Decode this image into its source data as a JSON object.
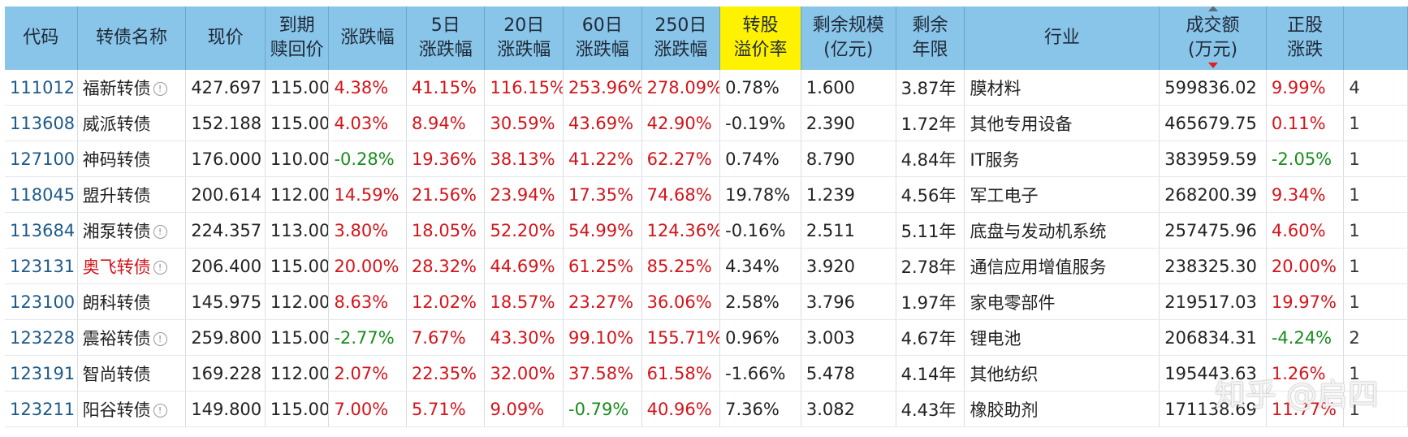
{
  "headers": {
    "code": "代码",
    "name": "转债名称",
    "price": "现价",
    "redeem_l1": "到期",
    "redeem_l2": "赎回价",
    "change": "涨跌幅",
    "d5_l1": "5日",
    "d5_l2": "涨跌幅",
    "d20_l1": "20日",
    "d20_l2": "涨跌幅",
    "d60_l1": "60日",
    "d60_l2": "涨跌幅",
    "d250_l1": "250日",
    "d250_l2": "涨跌幅",
    "premium_l1": "转股",
    "premium_l2": "溢价率",
    "scale_l1": "剩余规模",
    "scale_l2": "(亿元)",
    "years_l1": "剩余",
    "years_l2": "年限",
    "industry": "行业",
    "volume_l1": "成交额",
    "volume_l2": "(万元)",
    "stock_l1": "正股",
    "stock_l2": "涨跌"
  },
  "rows": [
    {
      "code": "111012",
      "name": "福新转债",
      "info": true,
      "name_red": false,
      "price": "427.697",
      "redeem": "115.00",
      "change": "4.38%",
      "change_c": "red",
      "d5": "41.15%",
      "d5_c": "red",
      "d20": "116.15%",
      "d20_c": "red",
      "d60": "253.96%",
      "d60_c": "red",
      "d250": "278.09%",
      "d250_c": "red",
      "premium": "0.78%",
      "scale": "1.600",
      "years": "3.87年",
      "industry": "膜材料",
      "volume": "599836.02",
      "stock": "9.99%",
      "stock_c": "red",
      "tail": "4"
    },
    {
      "code": "113608",
      "name": "威派转债",
      "info": false,
      "name_red": false,
      "price": "152.188",
      "redeem": "115.00",
      "change": "4.03%",
      "change_c": "red",
      "d5": "8.94%",
      "d5_c": "red",
      "d20": "30.59%",
      "d20_c": "red",
      "d60": "43.69%",
      "d60_c": "red",
      "d250": "42.90%",
      "d250_c": "red",
      "premium": "-0.19%",
      "scale": "2.390",
      "years": "1.72年",
      "industry": "其他专用设备",
      "volume": "465679.75",
      "stock": "0.11%",
      "stock_c": "red",
      "tail": "1"
    },
    {
      "code": "127100",
      "name": "神码转债",
      "info": false,
      "name_red": false,
      "price": "176.000",
      "redeem": "110.00",
      "change": "-0.28%",
      "change_c": "green",
      "d5": "19.36%",
      "d5_c": "red",
      "d20": "38.13%",
      "d20_c": "red",
      "d60": "41.22%",
      "d60_c": "red",
      "d250": "62.27%",
      "d250_c": "red",
      "premium": "0.74%",
      "scale": "8.790",
      "years": "4.84年",
      "industry": "IT服务",
      "volume": "383959.59",
      "stock": "-2.05%",
      "stock_c": "green",
      "tail": "1"
    },
    {
      "code": "118045",
      "name": "盟升转债",
      "info": false,
      "name_red": false,
      "price": "200.614",
      "redeem": "112.00",
      "change": "14.59%",
      "change_c": "red",
      "d5": "21.56%",
      "d5_c": "red",
      "d20": "23.94%",
      "d20_c": "red",
      "d60": "17.35%",
      "d60_c": "red",
      "d250": "74.68%",
      "d250_c": "red",
      "premium": "19.78%",
      "scale": "1.239",
      "years": "4.56年",
      "industry": "军工电子",
      "volume": "268200.39",
      "stock": "9.34%",
      "stock_c": "red",
      "tail": "1"
    },
    {
      "code": "113684",
      "name": "湘泵转债",
      "info": true,
      "name_red": false,
      "price": "224.357",
      "redeem": "113.00",
      "change": "3.80%",
      "change_c": "red",
      "d5": "18.05%",
      "d5_c": "red",
      "d20": "52.20%",
      "d20_c": "red",
      "d60": "54.99%",
      "d60_c": "red",
      "d250": "124.36%",
      "d250_c": "red",
      "premium": "-0.16%",
      "scale": "2.511",
      "years": "5.11年",
      "industry": "底盘与发动机系统",
      "volume": "257475.96",
      "stock": "4.60%",
      "stock_c": "red",
      "tail": "1"
    },
    {
      "code": "123131",
      "name": "奥飞转债",
      "info": true,
      "name_red": true,
      "price": "206.400",
      "redeem": "115.00",
      "change": "20.00%",
      "change_c": "red",
      "d5": "28.32%",
      "d5_c": "red",
      "d20": "44.69%",
      "d20_c": "red",
      "d60": "61.25%",
      "d60_c": "red",
      "d250": "85.25%",
      "d250_c": "red",
      "premium": "4.34%",
      "scale": "3.920",
      "years": "2.78年",
      "industry": "通信应用增值服务",
      "volume": "238325.30",
      "stock": "20.00%",
      "stock_c": "red",
      "tail": "1"
    },
    {
      "code": "123100",
      "name": "朗科转债",
      "info": false,
      "name_red": false,
      "price": "145.975",
      "redeem": "112.00",
      "change": "8.63%",
      "change_c": "red",
      "d5": "12.02%",
      "d5_c": "red",
      "d20": "18.57%",
      "d20_c": "red",
      "d60": "23.27%",
      "d60_c": "red",
      "d250": "36.06%",
      "d250_c": "red",
      "premium": "2.58%",
      "scale": "3.796",
      "years": "1.97年",
      "industry": "家电零部件",
      "volume": "219517.03",
      "stock": "19.97%",
      "stock_c": "red",
      "tail": "1"
    },
    {
      "code": "123228",
      "name": "震裕转债",
      "info": true,
      "name_red": false,
      "price": "259.800",
      "redeem": "115.00",
      "change": "-2.77%",
      "change_c": "green",
      "d5": "7.67%",
      "d5_c": "red",
      "d20": "43.30%",
      "d20_c": "red",
      "d60": "99.10%",
      "d60_c": "red",
      "d250": "155.71%",
      "d250_c": "red",
      "premium": "0.96%",
      "scale": "3.003",
      "years": "4.67年",
      "industry": "锂电池",
      "volume": "206834.31",
      "stock": "-4.24%",
      "stock_c": "green",
      "tail": "2"
    },
    {
      "code": "123191",
      "name": "智尚转债",
      "info": false,
      "name_red": false,
      "price": "169.228",
      "redeem": "112.00",
      "change": "2.07%",
      "change_c": "red",
      "d5": "22.35%",
      "d5_c": "red",
      "d20": "32.00%",
      "d20_c": "red",
      "d60": "37.58%",
      "d60_c": "red",
      "d250": "61.58%",
      "d250_c": "red",
      "premium": "-1.66%",
      "scale": "5.478",
      "years": "4.14年",
      "industry": "其他纺织",
      "volume": "195443.63",
      "stock": "1.26%",
      "stock_c": "red",
      "tail": "1"
    },
    {
      "code": "123211",
      "name": "阳谷转债",
      "info": true,
      "name_red": false,
      "price": "149.800",
      "redeem": "115.00",
      "change": "7.00%",
      "change_c": "red",
      "d5": "5.71%",
      "d5_c": "red",
      "d20": "9.09%",
      "d20_c": "red",
      "d60": "-0.79%",
      "d60_c": "green",
      "d250": "40.96%",
      "d250_c": "red",
      "premium": "7.36%",
      "scale": "3.082",
      "years": "4.43年",
      "industry": "橡胶助剂",
      "volume": "171138.69",
      "stock": "11.77%",
      "stock_c": "red",
      "tail": "1"
    }
  ],
  "watermark": "知乎 @启四"
}
